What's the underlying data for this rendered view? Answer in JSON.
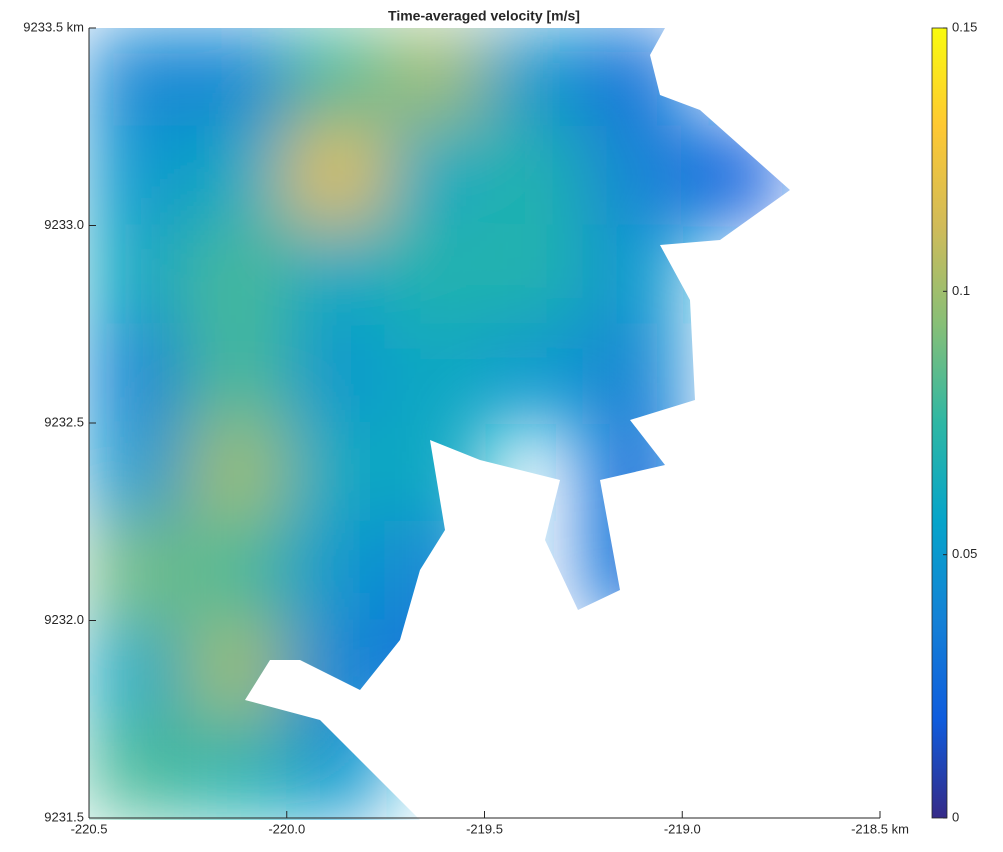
{
  "chart_data": {
    "type": "heatmap",
    "title": "Time-averaged velocity [m/s]",
    "x": [
      -220.375,
      -220.125,
      -219.875,
      -219.625,
      -219.375,
      -219.125,
      -218.875,
      -218.625
    ],
    "y": [
      9233.375,
      9233.125,
      9232.875,
      9232.625,
      9232.375,
      9232.125,
      9231.875,
      9231.625
    ],
    "values": [
      [
        0.04,
        0.04,
        0.08,
        0.1,
        0.05,
        0.03,
        null,
        null
      ],
      [
        0.05,
        0.06,
        0.12,
        0.06,
        0.07,
        0.04,
        0.02,
        null
      ],
      [
        0.06,
        0.08,
        0.06,
        0.07,
        0.07,
        0.05,
        null,
        null
      ],
      [
        0.04,
        0.08,
        0.05,
        0.06,
        0.05,
        0.04,
        null,
        null
      ],
      [
        0.05,
        0.1,
        0.06,
        0.06,
        null,
        0.03,
        null,
        null
      ],
      [
        0.09,
        0.08,
        0.05,
        0.04,
        null,
        0.03,
        null,
        null
      ],
      [
        0.06,
        0.1,
        0.04,
        0.03,
        null,
        null,
        null,
        null
      ],
      [
        0.08,
        0.07,
        0.05,
        null,
        null,
        null,
        null,
        null
      ]
    ],
    "xlim": [
      -220.5,
      -218.5
    ],
    "xticks": [
      -220.5,
      {
        "value": -220.0,
        "label": "-220.0"
      },
      -219.5,
      {
        "value": -219.0,
        "label": "-219.0"
      },
      {
        "value": -218.5,
        "label": "-218.5 km"
      }
    ],
    "ylim": [
      9231.5,
      9233.5
    ],
    "yticks": [
      9231.5,
      {
        "value": 9232.0,
        "label": "9232.0"
      },
      9232.5,
      {
        "value": 9233.0,
        "label": "9233.0"
      },
      {
        "value": 9233.5,
        "label": "9233.5 km"
      }
    ],
    "clim": [
      0,
      0.15
    ],
    "cticks": [
      0,
      0.05,
      0.1,
      0.15
    ],
    "colorscale": [
      "#352a87",
      "#0f5cdd",
      "#1481d6",
      "#06a4ca",
      "#2eb7a4",
      "#87bf77",
      "#d1bb59",
      "#fec832",
      "#f9fb0e"
    ]
  }
}
